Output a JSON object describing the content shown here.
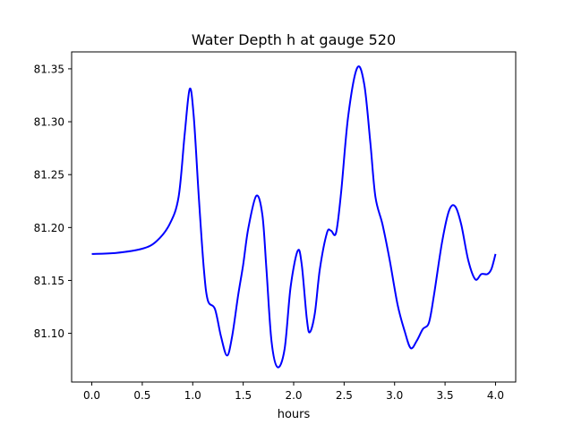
{
  "chart_data": {
    "type": "line",
    "title": "Water Depth h at gauge 520",
    "xlabel": "hours",
    "ylabel": "",
    "xlim": [
      -0.2,
      4.2
    ],
    "ylim": [
      81.054,
      81.366
    ],
    "xticks": [
      0.0,
      0.5,
      1.0,
      1.5,
      2.0,
      2.5,
      3.0,
      3.5,
      4.0
    ],
    "xtick_labels": [
      "0.0",
      "0.5",
      "1.0",
      "1.5",
      "2.0",
      "2.5",
      "3.0",
      "3.5",
      "4.0"
    ],
    "yticks": [
      81.1,
      81.15,
      81.2,
      81.25,
      81.3,
      81.35
    ],
    "ytick_labels": [
      "81.10",
      "81.15",
      "81.20",
      "81.25",
      "81.30",
      "81.35"
    ],
    "grid": false,
    "series": [
      {
        "name": "h",
        "color": "#0000ff",
        "x": [
          0.0,
          0.24,
          0.5,
          0.64,
          0.77,
          0.86,
          0.92,
          0.97,
          1.01,
          1.06,
          1.11,
          1.15,
          1.22,
          1.28,
          1.34,
          1.39,
          1.45,
          1.5,
          1.55,
          1.63,
          1.69,
          1.73,
          1.78,
          1.84,
          1.91,
          1.97,
          2.04,
          2.08,
          2.13,
          2.16,
          2.21,
          2.26,
          2.33,
          2.37,
          2.42,
          2.47,
          2.54,
          2.63,
          2.7,
          2.76,
          2.81,
          2.88,
          2.95,
          3.03,
          3.1,
          3.16,
          3.22,
          3.28,
          3.34,
          3.39,
          3.47,
          3.54,
          3.6,
          3.66,
          3.73,
          3.8,
          3.86,
          3.92,
          3.96,
          4.0
        ],
        "y": [
          81.175,
          81.176,
          81.18,
          81.187,
          81.203,
          81.229,
          81.288,
          81.331,
          81.305,
          81.229,
          81.161,
          81.131,
          81.123,
          81.097,
          81.079,
          81.097,
          81.136,
          81.165,
          81.199,
          81.23,
          81.212,
          81.161,
          81.093,
          81.068,
          81.085,
          81.144,
          81.178,
          81.165,
          81.114,
          81.101,
          81.119,
          81.161,
          81.195,
          81.197,
          81.195,
          81.233,
          81.305,
          81.351,
          81.335,
          81.28,
          81.229,
          81.203,
          81.17,
          81.127,
          81.102,
          81.086,
          81.093,
          81.104,
          81.11,
          81.136,
          81.186,
          81.216,
          81.22,
          81.203,
          81.169,
          81.151,
          81.156,
          81.156,
          81.161,
          81.175
        ]
      }
    ]
  }
}
